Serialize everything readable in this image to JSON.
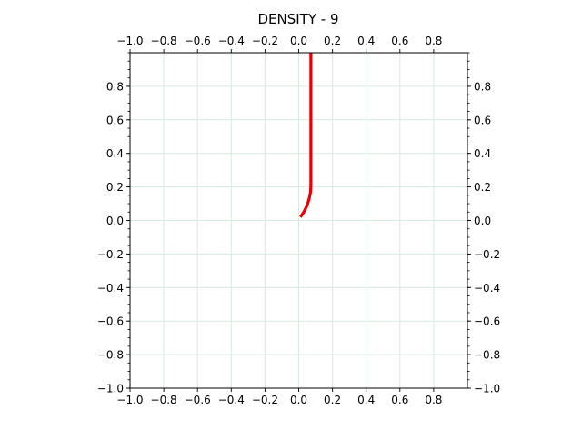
{
  "chart_data": {
    "type": "line",
    "title": "DENSITY - 9",
    "xlabel": "",
    "ylabel": "",
    "xlim": [
      -1.0,
      1.0
    ],
    "ylim": [
      -1.0,
      1.0
    ],
    "x_ticks": [
      -1.0,
      -0.8,
      -0.6,
      -0.4,
      -0.2,
      0.0,
      0.2,
      0.4,
      0.6,
      0.8
    ],
    "x_tick_labels": [
      "−1.0",
      "−0.8",
      "−0.6",
      "−0.4",
      "−0.2",
      "0.0",
      "0.2",
      "0.4",
      "0.6",
      "0.8"
    ],
    "y_ticks": [
      -1.0,
      -0.8,
      -0.6,
      -0.4,
      -0.2,
      0.0,
      0.2,
      0.4,
      0.6,
      0.8
    ],
    "y_tick_labels": [
      "−1.0",
      "−0.8",
      "−0.6",
      "−0.4",
      "−0.2",
      "0.0",
      "0.2",
      "0.4",
      "0.6",
      "0.8"
    ],
    "tick_label_positions": "all four sides",
    "grid": true,
    "series": [
      {
        "color": "#ee0000",
        "points": [
          [
            0.01,
            0.02
          ],
          [
            0.03,
            0.05
          ],
          [
            0.05,
            0.09
          ],
          [
            0.062,
            0.13
          ],
          [
            0.07,
            0.17
          ],
          [
            0.072,
            0.21
          ],
          [
            0.072,
            0.4
          ],
          [
            0.072,
            0.6
          ],
          [
            0.072,
            0.8
          ],
          [
            0.072,
            1.0
          ]
        ]
      }
    ]
  }
}
